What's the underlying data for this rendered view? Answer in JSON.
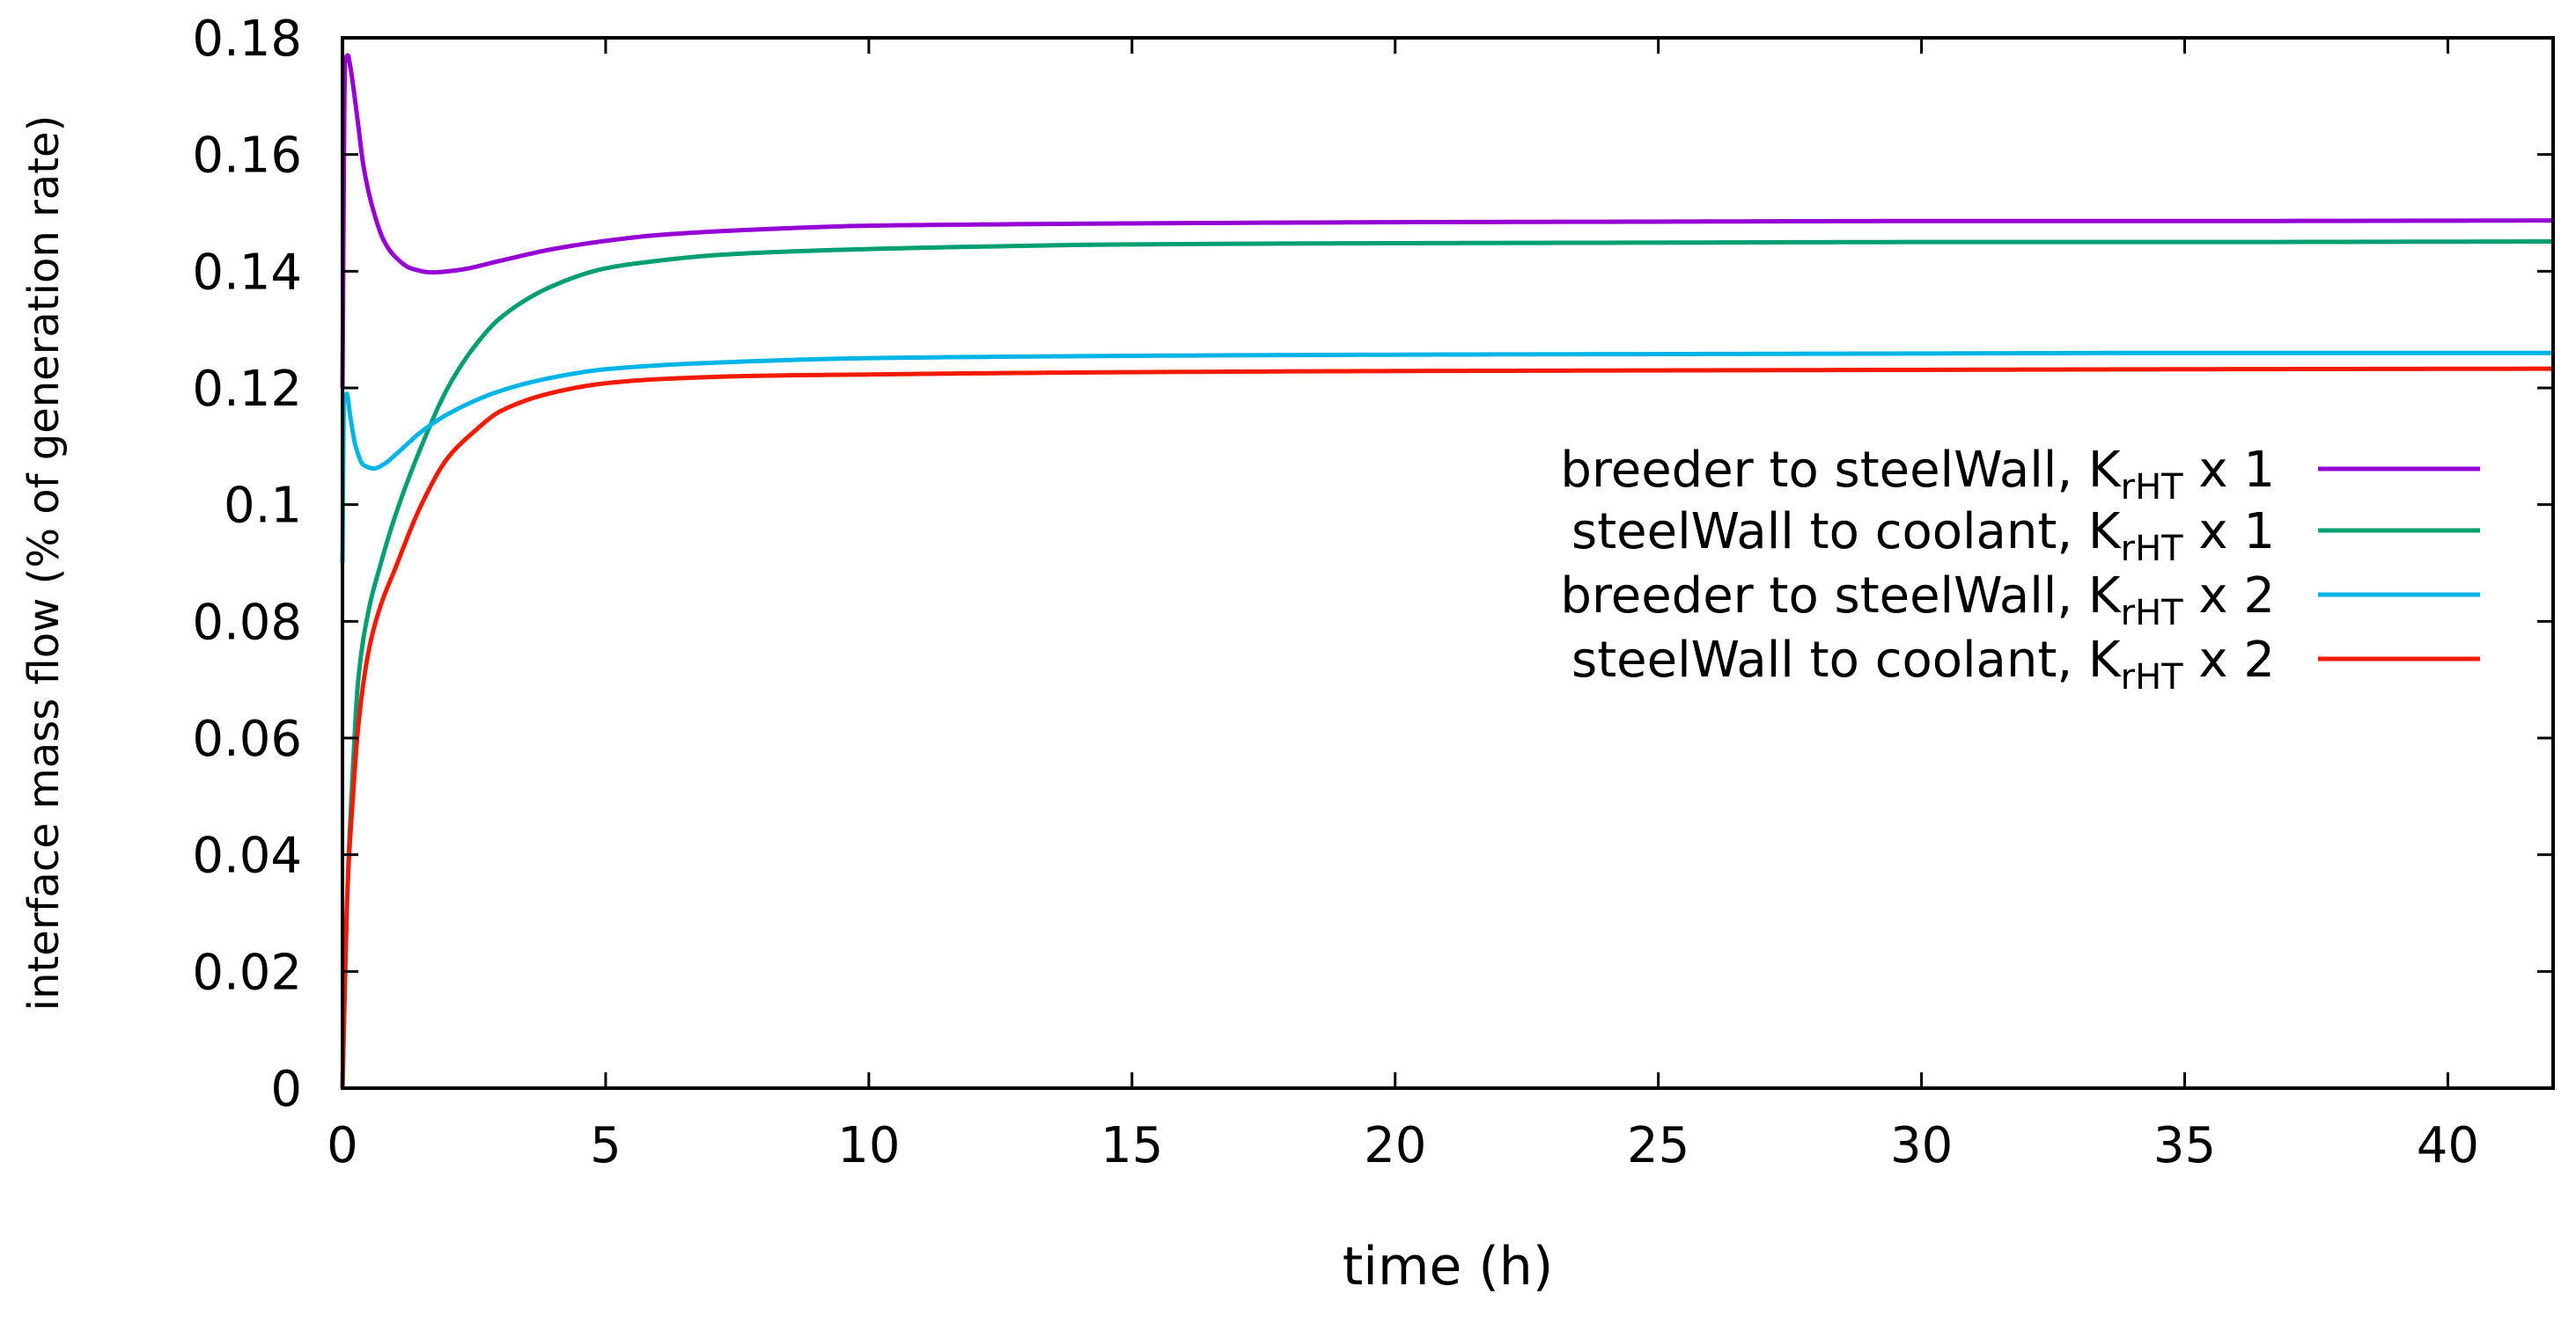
{
  "chart_data": {
    "type": "line",
    "title": "",
    "xlabel": "time (h)",
    "ylabel": "interface mass flow (% of generation rate)",
    "xlim": [
      0,
      42
    ],
    "ylim": [
      0,
      0.18
    ],
    "xticks": [
      0,
      5,
      10,
      15,
      20,
      25,
      30,
      35,
      40
    ],
    "yticks": [
      0,
      0.02,
      0.04,
      0.06,
      0.08,
      0.1,
      0.12,
      0.14,
      0.16,
      0.18
    ],
    "xtick_labels": [
      "0",
      "5",
      "10",
      "15",
      "20",
      "25",
      "30",
      "35",
      "40"
    ],
    "ytick_labels": [
      "0",
      "0.02",
      "0.04",
      "0.06",
      "0.08",
      "0.1",
      "0.12",
      "0.14",
      "0.16",
      "0.18"
    ],
    "grid": false,
    "legend_position": "center-right",
    "series": [
      {
        "name": "breeder to steelWall, KrHT x 1",
        "legend_prefix": "breeder to steelWall, K",
        "legend_sub": "rHT",
        "legend_suffix": " x 1",
        "color": "#9400D3",
        "x": [
          0,
          0.05,
          0.1,
          0.15,
          0.2,
          0.3,
          0.4,
          0.6,
          0.8,
          1.0,
          1.3,
          1.7,
          2.2,
          3,
          4,
          5,
          6,
          8,
          10,
          12,
          15,
          20,
          25,
          30,
          35,
          42
        ],
        "y": [
          0.12,
          0.176,
          0.177,
          0.175,
          0.172,
          0.165,
          0.158,
          0.15,
          0.145,
          0.1425,
          0.1405,
          0.1398,
          0.1402,
          0.1418,
          0.1438,
          0.1452,
          0.1462,
          0.1472,
          0.1478,
          0.148,
          0.1482,
          0.1484,
          0.1485,
          0.1486,
          0.1486,
          0.1487
        ]
      },
      {
        "name": "steelWall to coolant, KrHT x 1",
        "legend_prefix": "steelWall to coolant, K",
        "legend_sub": "rHT",
        "legend_suffix": " x 1",
        "color": "#009E73",
        "x": [
          0,
          0.1,
          0.2,
          0.3,
          0.5,
          0.7,
          1.0,
          1.5,
          2,
          2.5,
          3,
          4,
          5,
          6,
          7,
          8,
          10,
          12,
          15,
          20,
          25,
          30,
          35,
          42
        ],
        "y": [
          0,
          0.035,
          0.055,
          0.07,
          0.082,
          0.089,
          0.098,
          0.11,
          0.12,
          0.127,
          0.132,
          0.1375,
          0.1405,
          0.1418,
          0.1427,
          0.1432,
          0.1438,
          0.1442,
          0.1446,
          0.1448,
          0.1449,
          0.145,
          0.145,
          0.1451
        ]
      },
      {
        "name": "breeder to steelWall, KrHT x 2",
        "legend_prefix": "breeder to steelWall, K",
        "legend_sub": "rHT",
        "legend_suffix": " x 2",
        "color": "#00B4E6",
        "x": [
          0,
          0.03,
          0.08,
          0.15,
          0.25,
          0.4,
          0.6,
          0.8,
          1.0,
          1.5,
          2,
          3,
          4,
          5,
          7,
          10,
          15,
          20,
          25,
          30,
          35,
          42
        ],
        "y": [
          0.09,
          0.118,
          0.119,
          0.115,
          0.11,
          0.1068,
          0.1062,
          0.107,
          0.1085,
          0.1125,
          0.1155,
          0.1195,
          0.1218,
          0.1232,
          0.1243,
          0.1251,
          0.1255,
          0.1257,
          0.1258,
          0.1259,
          0.126,
          0.126
        ]
      },
      {
        "name": "steelWall to coolant, KrHT x 2",
        "legend_prefix": "steelWall to coolant, K",
        "legend_sub": "rHT",
        "legend_suffix": " x 2",
        "color": "#F21A00",
        "x": [
          0,
          0.05,
          0.1,
          0.2,
          0.3,
          0.5,
          0.7,
          1.0,
          1.5,
          2,
          2.5,
          3,
          4,
          5,
          6,
          8,
          10,
          12,
          15,
          20,
          25,
          30,
          35,
          42
        ],
        "y": [
          0,
          0.02,
          0.035,
          0.05,
          0.062,
          0.075,
          0.082,
          0.089,
          0.1,
          0.108,
          0.1125,
          0.116,
          0.1192,
          0.1208,
          0.1215,
          0.1221,
          0.1223,
          0.1225,
          0.1227,
          0.1229,
          0.123,
          0.1231,
          0.1232,
          0.1233
        ]
      }
    ]
  }
}
